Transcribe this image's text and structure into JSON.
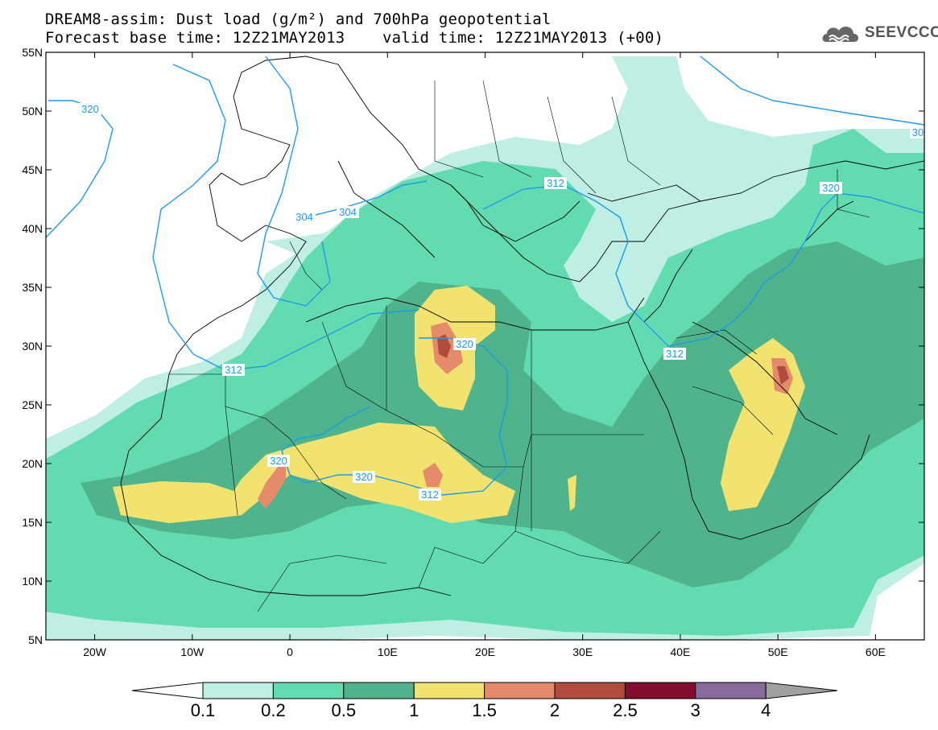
{
  "title_line1": "DREAM8-assim: Dust load (g/m²) and 700hPa geopotential",
  "title_line2": "Forecast base time: 12Z21MAY2013    valid time: 12Z21MAY2013 (+00)",
  "logo_text": "SEEVCCC",
  "map": {
    "lon_range": [
      -25,
      65
    ],
    "lat_range": [
      5,
      55
    ],
    "lat_labels": [
      "55N",
      "50N",
      "45N",
      "40N",
      "35N",
      "30N",
      "25N",
      "20N",
      "15N",
      "10N",
      "5N"
    ],
    "lon_labels": [
      "20W",
      "10W",
      "0",
      "10E",
      "20E",
      "30E",
      "40E",
      "50E",
      "60E"
    ],
    "contour_labels": [
      "320",
      "304",
      "304",
      "312",
      "312",
      "312",
      "320",
      "320",
      "320",
      "320",
      "312",
      "30"
    ]
  },
  "colorbar": {
    "levels": [
      "0.1",
      "0.2",
      "0.5",
      "1",
      "1.5",
      "2",
      "2.5",
      "3",
      "4"
    ],
    "colors": [
      "#bfeee4",
      "#63dbb0",
      "#4fb48b",
      "#f2e371",
      "#e58b69",
      "#b04c3e",
      "#820d2d",
      "#896a9c"
    ],
    "under_color": "#ffffff",
    "over_color": "#a0a0a0"
  },
  "colors": {
    "contour": "#1e9be6",
    "border": "#000000"
  }
}
